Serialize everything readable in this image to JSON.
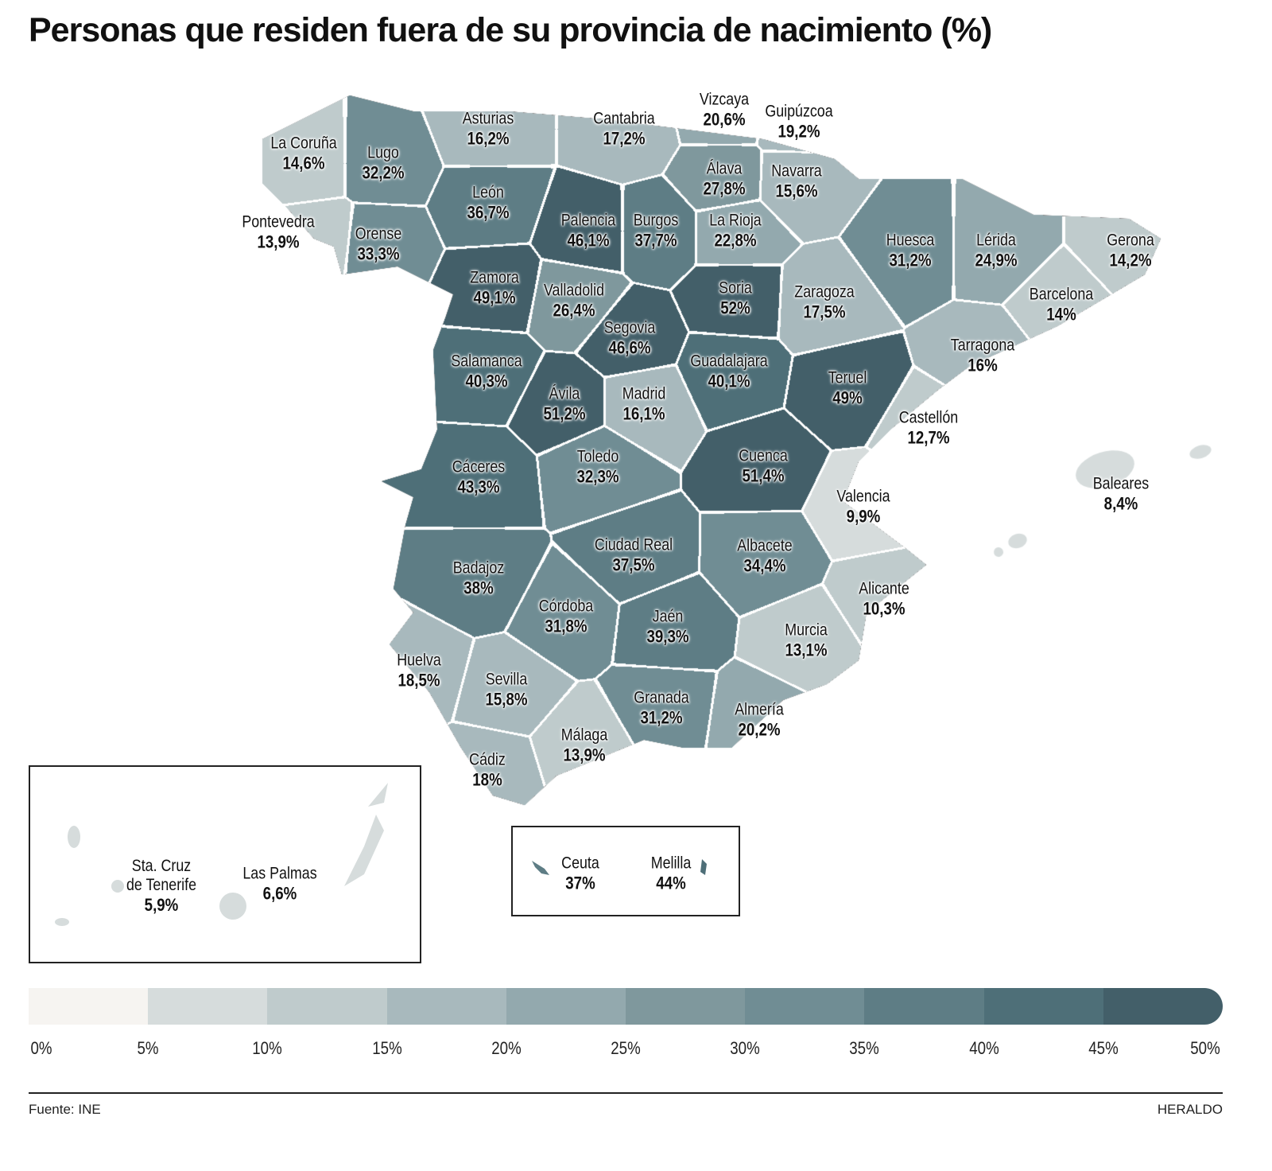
{
  "title": "Personas que residen fuera de su provincia de nacimiento (%)",
  "scale_colors": [
    "#f6f4f1",
    "#d6dcdc",
    "#bfcbcc",
    "#a8b9bd",
    "#93a9ae",
    "#7f989d",
    "#708d94",
    "#5e7d85",
    "#4e6f78",
    "#435f69"
  ],
  "legend_ticks": [
    "0%",
    "5%",
    "10%",
    "15%",
    "20%",
    "25%",
    "30%",
    "35%",
    "40%",
    "45%",
    "50%"
  ],
  "provinces": [
    {
      "name": "La Coruña",
      "value": 14.6,
      "label": "14,6%"
    },
    {
      "name": "Lugo",
      "value": 32.2,
      "label": "32,2%"
    },
    {
      "name": "Asturias",
      "value": 16.2,
      "label": "16,2%"
    },
    {
      "name": "Cantabria",
      "value": 17.2,
      "label": "17,2%"
    },
    {
      "name": "Vizcaya",
      "value": 20.6,
      "label": "20,6%"
    },
    {
      "name": "Guipúzcoa",
      "value": 19.2,
      "label": "19,2%"
    },
    {
      "name": "Álava",
      "value": 27.8,
      "label": "27,8%"
    },
    {
      "name": "Navarra",
      "value": 15.6,
      "label": "15,6%"
    },
    {
      "name": "Pontevedra",
      "value": 13.9,
      "label": "13,9%"
    },
    {
      "name": "Orense",
      "value": 33.3,
      "label": "33,3%"
    },
    {
      "name": "León",
      "value": 36.7,
      "label": "36,7%"
    },
    {
      "name": "Palencia",
      "value": 46.1,
      "label": "46,1%"
    },
    {
      "name": "Burgos",
      "value": 37.7,
      "label": "37,7%"
    },
    {
      "name": "La Rioja",
      "value": 22.8,
      "label": "22,8%"
    },
    {
      "name": "Huesca",
      "value": 31.2,
      "label": "31,2%"
    },
    {
      "name": "Lérida",
      "value": 24.9,
      "label": "24,9%"
    },
    {
      "name": "Gerona",
      "value": 14.2,
      "label": "14,2%"
    },
    {
      "name": "Zamora",
      "value": 49.1,
      "label": "49,1%"
    },
    {
      "name": "Valladolid",
      "value": 26.4,
      "label": "26,4%"
    },
    {
      "name": "Soria",
      "value": 52,
      "label": "52%"
    },
    {
      "name": "Zaragoza",
      "value": 17.5,
      "label": "17,5%"
    },
    {
      "name": "Barcelona",
      "value": 14,
      "label": "14%"
    },
    {
      "name": "Segovia",
      "value": 46.6,
      "label": "46,6%"
    },
    {
      "name": "Salamanca",
      "value": 40.3,
      "label": "40,3%"
    },
    {
      "name": "Guadalajara",
      "value": 40.1,
      "label": "40,1%"
    },
    {
      "name": "Teruel",
      "value": 49,
      "label": "49%"
    },
    {
      "name": "Tarragona",
      "value": 16,
      "label": "16%"
    },
    {
      "name": "Ávila",
      "value": 51.2,
      "label": "51,2%"
    },
    {
      "name": "Madrid",
      "value": 16.1,
      "label": "16,1%"
    },
    {
      "name": "Castellón",
      "value": 12.7,
      "label": "12,7%"
    },
    {
      "name": "Cáceres",
      "value": 43.3,
      "label": "43,3%"
    },
    {
      "name": "Toledo",
      "value": 32.3,
      "label": "32,3%"
    },
    {
      "name": "Cuenca",
      "value": 51.4,
      "label": "51,4%"
    },
    {
      "name": "Valencia",
      "value": 9.9,
      "label": "9,9%"
    },
    {
      "name": "Baleares",
      "value": 8.4,
      "label": "8,4%"
    },
    {
      "name": "Ciudad Real",
      "value": 37.5,
      "label": "37,5%"
    },
    {
      "name": "Albacete",
      "value": 34.4,
      "label": "34,4%"
    },
    {
      "name": "Badajoz",
      "value": 38,
      "label": "38%"
    },
    {
      "name": "Alicante",
      "value": 10.3,
      "label": "10,3%"
    },
    {
      "name": "Córdoba",
      "value": 31.8,
      "label": "31,8%"
    },
    {
      "name": "Jaén",
      "value": 39.3,
      "label": "39,3%"
    },
    {
      "name": "Murcia",
      "value": 13.1,
      "label": "13,1%"
    },
    {
      "name": "Huelva",
      "value": 18.5,
      "label": "18,5%"
    },
    {
      "name": "Sevilla",
      "value": 15.8,
      "label": "15,8%"
    },
    {
      "name": "Granada",
      "value": 31.2,
      "label": "31,2%"
    },
    {
      "name": "Almería",
      "value": 20.2,
      "label": "20,2%"
    },
    {
      "name": "Málaga",
      "value": 13.9,
      "label": "13,9%"
    },
    {
      "name": "Cádiz",
      "value": 18,
      "label": "18%"
    }
  ],
  "canarias": [
    {
      "name_line1": "Sta. Cruz",
      "name_line2": "de Tenerife",
      "value": 5.9,
      "label": "5,9%"
    },
    {
      "name": "Las Palmas",
      "value": 6.6,
      "label": "6,6%"
    }
  ],
  "ceuta_melilla": [
    {
      "name": "Ceuta",
      "value": 37,
      "label": "37%"
    },
    {
      "name": "Melilla",
      "value": 44,
      "label": "44%"
    }
  ],
  "footer": {
    "source": "Fuente: INE",
    "brand": "HERALDO"
  }
}
